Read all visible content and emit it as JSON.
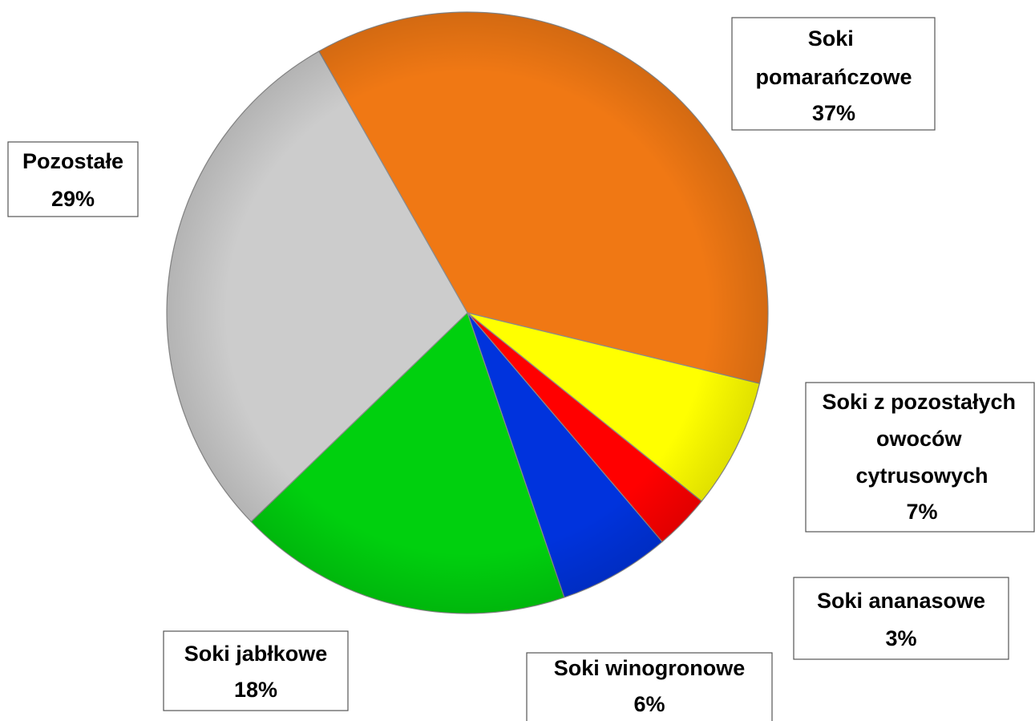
{
  "chart_data": {
    "type": "pie",
    "categories": [
      "Soki pomarańczowe",
      "Soki z pozostałych owoców cytrusowych",
      "Soki ananasowe",
      "Soki winogronowe",
      "Soki jabłkowe",
      "Pozostałe"
    ],
    "values": [
      37,
      7,
      3,
      6,
      18,
      29
    ],
    "value_labels": [
      "37%",
      "7%",
      "3%",
      "6%",
      "18%",
      "29%"
    ],
    "colors": [
      "#f07814",
      "#ffff00",
      "#ff0000",
      "#0033dd",
      "#00d00e",
      "#cccccc"
    ]
  }
}
